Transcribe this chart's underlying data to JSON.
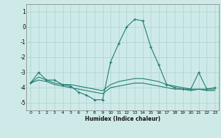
{
  "xlabel": "Humidex (Indice chaleur)",
  "x": [
    0,
    1,
    2,
    3,
    4,
    5,
    6,
    7,
    8,
    9,
    10,
    11,
    12,
    13,
    14,
    15,
    16,
    17,
    18,
    19,
    20,
    21,
    22,
    23
  ],
  "line1": [
    -3.7,
    -3.0,
    -3.5,
    -3.5,
    -3.8,
    -3.9,
    -4.3,
    -4.5,
    -4.8,
    -4.8,
    -2.3,
    -1.1,
    0.0,
    0.5,
    0.4,
    -1.3,
    -2.5,
    -3.8,
    -4.0,
    -4.1,
    -4.1,
    -3.0,
    -4.1,
    -4.0
  ],
  "line2": [
    -3.7,
    -3.3,
    -3.5,
    -3.7,
    -3.8,
    -3.8,
    -3.9,
    -4.0,
    -4.1,
    -4.2,
    -3.8,
    -3.6,
    -3.5,
    -3.4,
    -3.4,
    -3.5,
    -3.6,
    -3.8,
    -3.9,
    -4.0,
    -4.1,
    -4.1,
    -4.1,
    -4.1
  ],
  "line3": [
    -3.7,
    -3.5,
    -3.6,
    -3.8,
    -3.9,
    -4.0,
    -4.1,
    -4.2,
    -4.3,
    -4.4,
    -4.0,
    -3.9,
    -3.8,
    -3.7,
    -3.7,
    -3.8,
    -3.9,
    -4.0,
    -4.1,
    -4.1,
    -4.2,
    -4.1,
    -4.2,
    -4.2
  ],
  "color": "#1a7a6e",
  "bg_color": "#ceeae8",
  "grid_color": "#aacfcd",
  "ylim": [
    -5.5,
    1.5
  ],
  "yticks": [
    1,
    0,
    -1,
    -2,
    -3,
    -4,
    -5
  ]
}
